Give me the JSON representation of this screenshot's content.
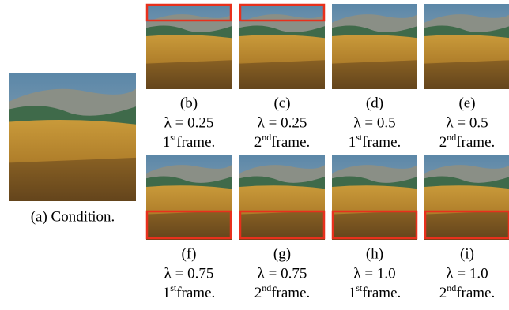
{
  "condition": {
    "label": "(a) Condition."
  },
  "panels": [
    {
      "label": "(b)",
      "lambda": "λ = 0.25",
      "ordinal": "1",
      "suffix": "st",
      "frame": "frame."
    },
    {
      "label": "(c)",
      "lambda": "λ = 0.25",
      "ordinal": "2",
      "suffix": "nd",
      "frame": "frame."
    },
    {
      "label": "(d)",
      "lambda": "λ = 0.5",
      "ordinal": "1",
      "suffix": "st",
      "frame": "frame."
    },
    {
      "label": "(e)",
      "lambda": "λ = 0.5",
      "ordinal": "2",
      "suffix": "nd",
      "frame": "frame."
    },
    {
      "label": "(f)",
      "lambda": "λ = 0.75",
      "ordinal": "1",
      "suffix": "st",
      "frame": "frame."
    },
    {
      "label": "(g)",
      "lambda": "λ = 0.75",
      "ordinal": "2",
      "suffix": "nd",
      "frame": "frame."
    },
    {
      "label": "(h)",
      "lambda": "λ = 1.0",
      "ordinal": "1",
      "suffix": "st",
      "frame": "frame."
    },
    {
      "label": "(i)",
      "lambda": "λ = 1.0",
      "ordinal": "2",
      "suffix": "nd",
      "frame": "frame."
    }
  ]
}
